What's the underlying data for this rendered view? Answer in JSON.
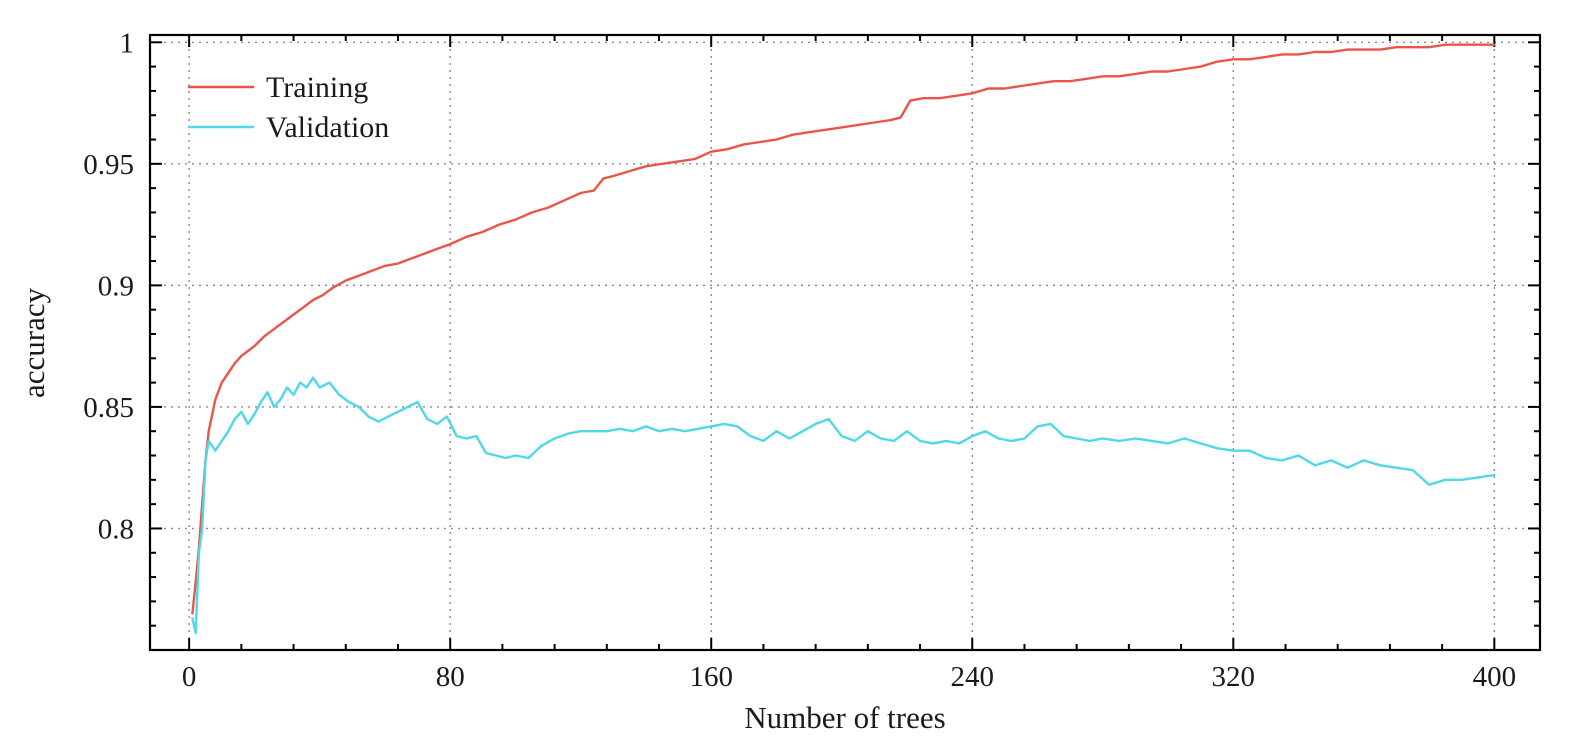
{
  "colors": {
    "background": "#ffffff",
    "axis": "#000000",
    "grid": "#8a8a8a",
    "text": "#1a1a1a",
    "training_line": "#e8564a",
    "validation_line": "#4fd8e8"
  },
  "chart_data": {
    "type": "line",
    "title": "",
    "xlabel": "Number of trees",
    "ylabel": "accuracy",
    "xlim": [
      -12,
      414
    ],
    "ylim": [
      0.75,
      1.003
    ],
    "grid": true,
    "legend_position": "top-left",
    "x_ticks": {
      "values": [
        0,
        80,
        160,
        240,
        320,
        400
      ],
      "labels": [
        "0",
        "80",
        "160",
        "240",
        "320",
        "400"
      ]
    },
    "y_ticks": {
      "values": [
        0.8,
        0.85,
        0.9,
        0.95,
        1
      ],
      "labels": [
        "0.8",
        "0.85",
        "0.9",
        "0.95",
        "1"
      ]
    },
    "x_minor_step": 16,
    "y_minor_step": 0.01,
    "series": [
      {
        "name": "Training",
        "color": "#e8564a",
        "x": [
          1,
          2,
          3,
          4,
          5,
          6,
          8,
          10,
          12,
          14,
          16,
          18,
          20,
          23,
          26,
          29,
          32,
          35,
          38,
          41,
          44,
          48,
          52,
          56,
          60,
          64,
          68,
          72,
          76,
          80,
          85,
          90,
          95,
          100,
          105,
          110,
          115,
          120,
          124,
          127,
          130,
          135,
          140,
          145,
          150,
          155,
          160,
          165,
          170,
          175,
          180,
          185,
          190,
          195,
          200,
          205,
          210,
          215,
          218,
          221,
          225,
          230,
          235,
          240,
          245,
          250,
          255,
          260,
          265,
          270,
          275,
          280,
          285,
          290,
          295,
          300,
          305,
          310,
          315,
          320,
          325,
          330,
          335,
          340,
          345,
          350,
          355,
          360,
          365,
          370,
          375,
          380,
          385,
          390,
          395,
          400
        ],
        "y": [
          0.765,
          0.778,
          0.792,
          0.81,
          0.828,
          0.84,
          0.853,
          0.86,
          0.864,
          0.868,
          0.871,
          0.873,
          0.875,
          0.879,
          0.882,
          0.885,
          0.888,
          0.891,
          0.894,
          0.896,
          0.899,
          0.902,
          0.904,
          0.906,
          0.908,
          0.909,
          0.911,
          0.913,
          0.915,
          0.917,
          0.92,
          0.922,
          0.925,
          0.927,
          0.93,
          0.932,
          0.935,
          0.938,
          0.939,
          0.944,
          0.945,
          0.947,
          0.949,
          0.95,
          0.951,
          0.952,
          0.955,
          0.956,
          0.958,
          0.959,
          0.96,
          0.962,
          0.963,
          0.964,
          0.965,
          0.966,
          0.967,
          0.968,
          0.969,
          0.976,
          0.977,
          0.977,
          0.978,
          0.979,
          0.981,
          0.981,
          0.982,
          0.983,
          0.984,
          0.984,
          0.985,
          0.986,
          0.986,
          0.987,
          0.988,
          0.988,
          0.989,
          0.99,
          0.992,
          0.993,
          0.993,
          0.994,
          0.995,
          0.995,
          0.996,
          0.996,
          0.997,
          0.997,
          0.997,
          0.998,
          0.998,
          0.998,
          0.999,
          0.999,
          0.999,
          0.999
        ]
      },
      {
        "name": "Validation",
        "color": "#4fd8e8",
        "x": [
          1,
          2,
          3,
          4,
          5,
          6,
          8,
          10,
          12,
          14,
          16,
          18,
          20,
          22,
          24,
          26,
          28,
          30,
          32,
          34,
          36,
          38,
          40,
          43,
          46,
          49,
          52,
          55,
          58,
          61,
          64,
          67,
          70,
          73,
          76,
          79,
          82,
          85,
          88,
          91,
          94,
          97,
          100,
          104,
          108,
          112,
          116,
          120,
          124,
          128,
          132,
          136,
          140,
          144,
          148,
          152,
          156,
          160,
          164,
          168,
          172,
          176,
          180,
          184,
          188,
          192,
          196,
          200,
          204,
          208,
          212,
          216,
          220,
          224,
          228,
          232,
          236,
          240,
          244,
          248,
          252,
          256,
          260,
          264,
          268,
          272,
          276,
          280,
          285,
          290,
          295,
          300,
          305,
          310,
          315,
          320,
          325,
          330,
          335,
          340,
          345,
          350,
          355,
          360,
          365,
          370,
          375,
          380,
          385,
          390,
          395,
          400
        ],
        "y": [
          0.763,
          0.757,
          0.79,
          0.8,
          0.828,
          0.836,
          0.832,
          0.836,
          0.84,
          0.845,
          0.848,
          0.843,
          0.847,
          0.852,
          0.856,
          0.85,
          0.853,
          0.858,
          0.855,
          0.86,
          0.858,
          0.862,
          0.858,
          0.86,
          0.855,
          0.852,
          0.85,
          0.846,
          0.844,
          0.846,
          0.848,
          0.85,
          0.852,
          0.845,
          0.843,
          0.846,
          0.838,
          0.837,
          0.838,
          0.831,
          0.83,
          0.829,
          0.83,
          0.829,
          0.834,
          0.837,
          0.839,
          0.84,
          0.84,
          0.84,
          0.841,
          0.84,
          0.842,
          0.84,
          0.841,
          0.84,
          0.841,
          0.842,
          0.843,
          0.842,
          0.838,
          0.836,
          0.84,
          0.837,
          0.84,
          0.843,
          0.845,
          0.838,
          0.836,
          0.84,
          0.837,
          0.836,
          0.84,
          0.836,
          0.835,
          0.836,
          0.835,
          0.838,
          0.84,
          0.837,
          0.836,
          0.837,
          0.842,
          0.843,
          0.838,
          0.837,
          0.836,
          0.837,
          0.836,
          0.837,
          0.836,
          0.835,
          0.837,
          0.835,
          0.833,
          0.832,
          0.832,
          0.829,
          0.828,
          0.83,
          0.826,
          0.828,
          0.825,
          0.828,
          0.826,
          0.825,
          0.824,
          0.818,
          0.82,
          0.82,
          0.821,
          0.822
        ]
      }
    ]
  }
}
